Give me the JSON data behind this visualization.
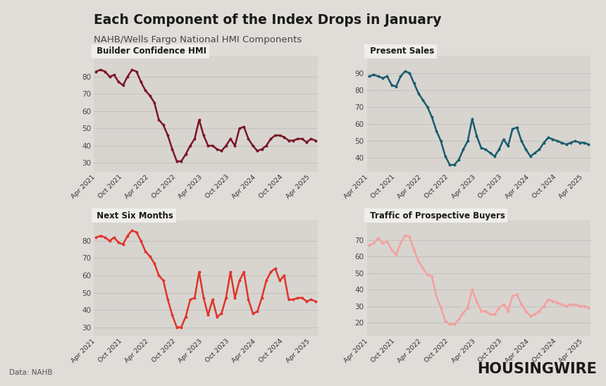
{
  "title": "Each Component of the Index Drops in January",
  "subtitle": "NAHB/Wells Fargo National HMI Components",
  "source": "Data: NAHB",
  "brand": "HOUSINGWIRE",
  "background_color": "#e0ddd8",
  "panel_bg": "#d8d5d0",
  "title_bar_bg": "#f0eeea",
  "subplots": [
    {
      "title": "Builder Confidence HMI",
      "color": "#7b1626",
      "ylim": [
        25,
        92
      ],
      "yticks": [
        30,
        40,
        50,
        60,
        70,
        80
      ],
      "values": [
        83,
        84,
        83,
        80,
        81,
        77,
        75,
        80,
        84,
        83,
        77,
        72,
        69,
        65,
        55,
        52,
        46,
        38,
        31,
        31,
        35,
        40,
        44,
        55,
        46,
        40,
        40,
        38,
        37,
        40,
        44,
        40,
        50,
        51,
        44,
        40,
        37,
        38,
        40,
        44,
        46,
        46,
        45,
        43,
        43,
        44,
        44,
        42,
        44,
        43
      ]
    },
    {
      "title": "Present Sales",
      "color": "#1a5c6e",
      "ylim": [
        32,
        100
      ],
      "yticks": [
        40,
        50,
        60,
        70,
        80,
        90
      ],
      "values": [
        88,
        89,
        88,
        87,
        88,
        83,
        82,
        88,
        91,
        90,
        84,
        78,
        74,
        70,
        64,
        56,
        50,
        41,
        36,
        36,
        39,
        45,
        50,
        63,
        53,
        46,
        45,
        43,
        41,
        45,
        51,
        47,
        57,
        58,
        50,
        45,
        41,
        43,
        45,
        49,
        52,
        51,
        50,
        49,
        48,
        49,
        50,
        49,
        49,
        48
      ]
    },
    {
      "title": "Next Six Months",
      "color": "#e0342a",
      "ylim": [
        25,
        92
      ],
      "yticks": [
        30,
        40,
        50,
        60,
        70,
        80
      ],
      "values": [
        82,
        83,
        82,
        80,
        82,
        79,
        78,
        83,
        86,
        85,
        80,
        74,
        71,
        67,
        60,
        57,
        46,
        37,
        30,
        30,
        36,
        46,
        47,
        62,
        47,
        37,
        46,
        36,
        38,
        47,
        62,
        47,
        57,
        62,
        46,
        38,
        39,
        47,
        57,
        62,
        64,
        57,
        60,
        46,
        46,
        47,
        47,
        45,
        46,
        45
      ]
    },
    {
      "title": "Traffic of Prospective Buyers",
      "color": "#f4a0a0",
      "ylim": [
        12,
        82
      ],
      "yticks": [
        20,
        30,
        40,
        50,
        60,
        70
      ],
      "values": [
        67,
        68,
        71,
        68,
        69,
        64,
        61,
        68,
        73,
        72,
        64,
        57,
        53,
        49,
        48,
        36,
        29,
        21,
        19,
        19,
        22,
        26,
        29,
        40,
        33,
        27,
        27,
        25,
        25,
        29,
        31,
        27,
        36,
        37,
        31,
        27,
        24,
        25,
        27,
        30,
        34,
        33,
        32,
        31,
        30,
        31,
        31,
        30,
        30,
        29
      ]
    }
  ],
  "x_labels": [
    "Apr 2021",
    "Oct 2021",
    "Apr 2022",
    "Oct 2022",
    "Apr 2023",
    "Oct 2023",
    "Apr 2024",
    "Oct 2024",
    "Apr 2025"
  ],
  "n_points": 50
}
